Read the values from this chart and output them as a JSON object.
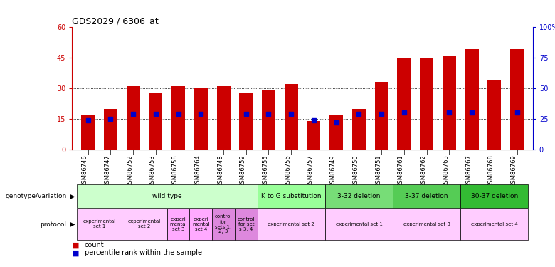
{
  "title": "GDS2029 / 6306_at",
  "samples": [
    "GSM86746",
    "GSM86747",
    "GSM86752",
    "GSM86753",
    "GSM86758",
    "GSM86764",
    "GSM86748",
    "GSM86759",
    "GSM86755",
    "GSM86756",
    "GSM86757",
    "GSM86749",
    "GSM86750",
    "GSM86751",
    "GSM86761",
    "GSM86762",
    "GSM86763",
    "GSM86767",
    "GSM86768",
    "GSM86769"
  ],
  "count_values": [
    17,
    20,
    31,
    28,
    31,
    30,
    31,
    28,
    29,
    32,
    14,
    17,
    20,
    33,
    45,
    45,
    46,
    49,
    34,
    49
  ],
  "percentile_values": [
    24,
    25,
    29,
    29,
    29,
    29,
    null,
    29,
    29,
    29,
    24,
    22,
    29,
    29,
    30,
    null,
    30,
    30,
    null,
    30
  ],
  "ylim_left": [
    0,
    60
  ],
  "ylim_right": [
    0,
    100
  ],
  "yticks_left": [
    0,
    15,
    30,
    45,
    60
  ],
  "ytick_labels_left": [
    "0",
    "15",
    "30",
    "45",
    "60"
  ],
  "yticks_right": [
    0,
    25,
    50,
    75,
    100
  ],
  "ytick_labels_right": [
    "0",
    "25",
    "50",
    "75",
    "100%"
  ],
  "bar_color": "#cc0000",
  "dot_color": "#0000cc",
  "bar_width": 0.6,
  "geno_groups": [
    {
      "label": "wild type",
      "start": 0,
      "end": 7,
      "color": "#ccffcc"
    },
    {
      "label": "K to G substitution",
      "start": 8,
      "end": 10,
      "color": "#99ff99"
    },
    {
      "label": "3-32 deletion",
      "start": 11,
      "end": 13,
      "color": "#77dd77"
    },
    {
      "label": "3-37 deletion",
      "start": 14,
      "end": 16,
      "color": "#55cc55"
    },
    {
      "label": "30-37 deletion",
      "start": 17,
      "end": 19,
      "color": "#33bb33"
    }
  ],
  "proto_groups": [
    {
      "label": "experimental\nset 1",
      "start": 0,
      "end": 1,
      "color": "#ffccff"
    },
    {
      "label": "experimental\nset 2",
      "start": 2,
      "end": 3,
      "color": "#ffccff"
    },
    {
      "label": "experi\nmental\nset 3",
      "start": 4,
      "end": 4,
      "color": "#ffaaff"
    },
    {
      "label": "experi\nmental\nset 4",
      "start": 5,
      "end": 5,
      "color": "#ffaaff"
    },
    {
      "label": "control\nfor\nsets 1,\n2, 3",
      "start": 6,
      "end": 6,
      "color": "#dd88dd"
    },
    {
      "label": "control\nfor set\ns 3, 4",
      "start": 7,
      "end": 7,
      "color": "#dd88dd"
    },
    {
      "label": "experimental set 2",
      "start": 8,
      "end": 10,
      "color": "#ffccff"
    },
    {
      "label": "experimental set 1",
      "start": 11,
      "end": 13,
      "color": "#ffccff"
    },
    {
      "label": "experimental set 3",
      "start": 14,
      "end": 16,
      "color": "#ffccff"
    },
    {
      "label": "experimental set 4",
      "start": 17,
      "end": 19,
      "color": "#ffccff"
    }
  ]
}
